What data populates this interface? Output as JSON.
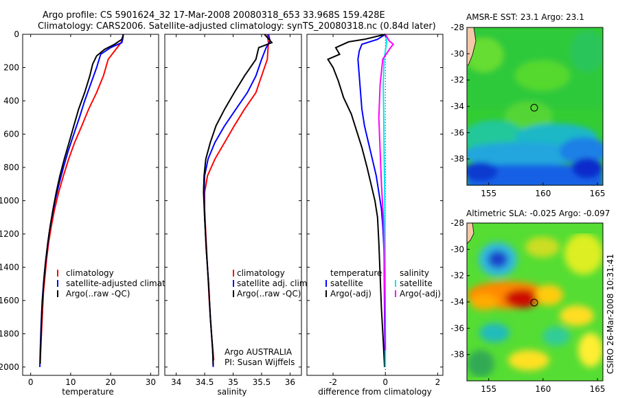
{
  "title_line1": "Argo profile: CS 5901624_32 17-Mar-2008 20080318_653 33.968S 159.428E",
  "title_line2": "Climatology: CARS2006. Satellite-adjusted climatology: synTS_20080318.nc (0.84d later)",
  "credit_vertical": "CSIRO 26-Mar-2008 10:31:41",
  "argo_note": [
    "Argo AUSTRALIA",
    "PI: Susan Wijffels"
  ],
  "colors": {
    "climatology": "#ff0000",
    "satellite": "#0000ff",
    "argo": "#000000",
    "salinity_satellite": "#00e5ee",
    "salinity_argo": "#ff00ff"
  },
  "chart_data": [
    {
      "type": "line",
      "xlabel": "temperature",
      "ylim": [
        2050,
        0
      ],
      "xlim": [
        -2,
        32
      ],
      "xticks": [
        "0",
        "10",
        "20",
        "30"
      ],
      "yticks": [
        "0",
        "200",
        "400",
        "600",
        "800",
        "1000",
        "1200",
        "1400",
        "1600",
        "1800",
        "2000"
      ],
      "legend": [
        "climatology",
        "satellite-adjusted climatology",
        "Argo(..raw -QC)"
      ],
      "series": [
        {
          "name": "climatology",
          "color": "#ff0000",
          "points": [
            [
              23.1,
              0
            ],
            [
              23,
              20
            ],
            [
              22.6,
              50
            ],
            [
              21,
              100
            ],
            [
              19.4,
              150
            ],
            [
              18.2,
              250
            ],
            [
              16.5,
              350
            ],
            [
              14.5,
              450
            ],
            [
              12.8,
              550
            ],
            [
              11,
              650
            ],
            [
              9.5,
              750
            ],
            [
              8.2,
              850
            ],
            [
              7,
              950
            ],
            [
              6,
              1050
            ],
            [
              5.2,
              1150
            ],
            [
              4.5,
              1250
            ],
            [
              4,
              1350
            ],
            [
              3.6,
              1450
            ],
            [
              3.2,
              1550
            ],
            [
              2.9,
              1700
            ],
            [
              2.6,
              1850
            ],
            [
              2.4,
              1960
            ]
          ]
        },
        {
          "name": "satellite-adjusted climatology",
          "color": "#0000ff",
          "points": [
            [
              23.1,
              0
            ],
            [
              23.1,
              20
            ],
            [
              22.8,
              50
            ],
            [
              20,
              80
            ],
            [
              17.5,
              120
            ],
            [
              16.5,
              200
            ],
            [
              15,
              300
            ],
            [
              13.5,
              400
            ],
            [
              12.2,
              500
            ],
            [
              10.8,
              600
            ],
            [
              9.4,
              700
            ],
            [
              8.2,
              800
            ],
            [
              7.1,
              900
            ],
            [
              6.1,
              1000
            ],
            [
              5.3,
              1100
            ],
            [
              4.6,
              1200
            ],
            [
              4.1,
              1300
            ],
            [
              3.6,
              1400
            ],
            [
              3.2,
              1500
            ],
            [
              2.9,
              1600
            ],
            [
              2.6,
              1750
            ],
            [
              2.4,
              1900
            ],
            [
              2.3,
              2000
            ]
          ]
        },
        {
          "name": "Argo(..raw -QC)",
          "color": "#000000",
          "points": [
            [
              23.2,
              0
            ],
            [
              22.8,
              30
            ],
            [
              21,
              60
            ],
            [
              18.5,
              90
            ],
            [
              16.5,
              130
            ],
            [
              15.5,
              180
            ],
            [
              14.8,
              250
            ],
            [
              13.5,
              350
            ],
            [
              12,
              450
            ],
            [
              10.8,
              550
            ],
            [
              9.6,
              650
            ],
            [
              8.4,
              750
            ],
            [
              7.3,
              850
            ],
            [
              6.4,
              950
            ],
            [
              5.6,
              1050
            ],
            [
              4.9,
              1150
            ],
            [
              4.3,
              1250
            ],
            [
              3.8,
              1350
            ],
            [
              3.4,
              1450
            ],
            [
              3.1,
              1550
            ],
            [
              2.8,
              1650
            ],
            [
              2.6,
              1800
            ],
            [
              2.4,
              1950
            ],
            [
              2.4,
              1980
            ]
          ]
        }
      ]
    },
    {
      "type": "line",
      "xlabel": "salinity",
      "ylim": [
        2050,
        0
      ],
      "xlim": [
        33.8,
        36.2
      ],
      "xticks": [
        "34",
        "34.5",
        "35",
        "35.5",
        "36"
      ],
      "legend": [
        "climatology",
        "satellite adj. clim.",
        "Argo(..raw -QC)"
      ],
      "series": [
        {
          "name": "climatology",
          "color": "#ff0000",
          "points": [
            [
              35.6,
              0
            ],
            [
              35.62,
              50
            ],
            [
              35.6,
              150
            ],
            [
              35.5,
              250
            ],
            [
              35.4,
              350
            ],
            [
              35.2,
              450
            ],
            [
              35.02,
              550
            ],
            [
              34.85,
              650
            ],
            [
              34.68,
              750
            ],
            [
              34.55,
              850
            ],
            [
              34.5,
              950
            ],
            [
              34.5,
              1050
            ],
            [
              34.52,
              1200
            ],
            [
              34.55,
              1400
            ],
            [
              34.58,
              1600
            ],
            [
              34.62,
              1800
            ],
            [
              34.66,
              1960
            ]
          ]
        },
        {
          "name": "satellite adj. clim.",
          "color": "#0000ff",
          "points": [
            [
              35.62,
              0
            ],
            [
              35.65,
              40
            ],
            [
              35.58,
              80
            ],
            [
              35.5,
              150
            ],
            [
              35.4,
              250
            ],
            [
              35.25,
              350
            ],
            [
              35.05,
              450
            ],
            [
              34.85,
              550
            ],
            [
              34.68,
              650
            ],
            [
              34.56,
              750
            ],
            [
              34.5,
              850
            ],
            [
              34.49,
              950
            ],
            [
              34.5,
              1100
            ],
            [
              34.53,
              1300
            ],
            [
              34.57,
              1500
            ],
            [
              34.6,
              1700
            ],
            [
              34.64,
              1900
            ],
            [
              34.65,
              2000
            ]
          ]
        },
        {
          "name": "Argo(..raw -QC)",
          "color": "#000000",
          "points": [
            [
              35.55,
              0
            ],
            [
              35.68,
              50
            ],
            [
              35.45,
              80
            ],
            [
              35.4,
              150
            ],
            [
              35.2,
              250
            ],
            [
              35.02,
              350
            ],
            [
              34.85,
              450
            ],
            [
              34.7,
              550
            ],
            [
              34.6,
              650
            ],
            [
              34.52,
              750
            ],
            [
              34.49,
              850
            ],
            [
              34.48,
              950
            ],
            [
              34.5,
              1100
            ],
            [
              34.53,
              1300
            ],
            [
              34.57,
              1500
            ],
            [
              34.6,
              1700
            ],
            [
              34.64,
              1900
            ],
            [
              34.65,
              1990
            ]
          ]
        }
      ]
    },
    {
      "type": "line",
      "xlabel": "difference from climatology",
      "ylim": [
        2050,
        0
      ],
      "xlim": [
        -3,
        2.2
      ],
      "xticks": [
        "-2",
        "0",
        "2"
      ],
      "legend": [
        "temperature",
        "satellite",
        "Argo(-adj)",
        "salinity",
        "satellite",
        "Argo(-adj)"
      ],
      "series": [
        {
          "name": "temperature satellite",
          "color": "#0000ff",
          "points": [
            [
              0,
              0
            ],
            [
              -0.3,
              30
            ],
            [
              -0.9,
              60
            ],
            [
              -1.0,
              100
            ],
            [
              -1.05,
              150
            ],
            [
              -1.0,
              250
            ],
            [
              -0.95,
              350
            ],
            [
              -0.9,
              450
            ],
            [
              -0.8,
              550
            ],
            [
              -0.65,
              650
            ],
            [
              -0.5,
              750
            ],
            [
              -0.35,
              850
            ],
            [
              -0.25,
              950
            ],
            [
              -0.15,
              1050
            ],
            [
              -0.1,
              1150
            ],
            [
              -0.05,
              1300
            ],
            [
              -0.04,
              1500
            ],
            [
              -0.03,
              1700
            ],
            [
              -0.02,
              1900
            ],
            [
              -0.02,
              2000
            ]
          ]
        },
        {
          "name": "temperature Argo(-adj)",
          "color": "#000000",
          "points": [
            [
              0,
              0
            ],
            [
              -0.8,
              30
            ],
            [
              -1.4,
              45
            ],
            [
              -1.9,
              80
            ],
            [
              -1.75,
              120
            ],
            [
              -2.2,
              150
            ],
            [
              -2.0,
              200
            ],
            [
              -1.8,
              280
            ],
            [
              -1.6,
              380
            ],
            [
              -1.3,
              480
            ],
            [
              -1.1,
              580
            ],
            [
              -0.9,
              680
            ],
            [
              -0.7,
              800
            ],
            [
              -0.55,
              900
            ],
            [
              -0.4,
              1000
            ],
            [
              -0.3,
              1100
            ],
            [
              -0.25,
              1250
            ],
            [
              -0.2,
              1450
            ],
            [
              -0.15,
              1650
            ],
            [
              -0.08,
              1850
            ],
            [
              -0.03,
              2000
            ]
          ]
        },
        {
          "name": "salinity satellite",
          "color": "#00e5ee",
          "points": [
            [
              0,
              0
            ],
            [
              0.05,
              40
            ],
            [
              0.02,
              80
            ],
            [
              -0.05,
              150
            ],
            [
              -0.08,
              300
            ],
            [
              -0.06,
              500
            ],
            [
              -0.05,
              700
            ],
            [
              -0.03,
              900
            ],
            [
              -0.02,
              1100
            ],
            [
              -0.01,
              1400
            ],
            [
              0,
              1700
            ],
            [
              0,
              2000
            ]
          ]
        },
        {
          "name": "salinity Argo(-adj)",
          "color": "#ff00ff",
          "points": [
            [
              0,
              0
            ],
            [
              0.15,
              40
            ],
            [
              0.3,
              60
            ],
            [
              0.2,
              80
            ],
            [
              -0.1,
              150
            ],
            [
              -0.2,
              300
            ],
            [
              -0.25,
              500
            ],
            [
              -0.2,
              700
            ],
            [
              -0.15,
              900
            ],
            [
              -0.08,
              1100
            ],
            [
              -0.05,
              1300
            ],
            [
              -0.03,
              1500
            ],
            [
              -0.01,
              1700
            ],
            [
              0,
              1900
            ]
          ]
        }
      ]
    },
    {
      "type": "heatmap",
      "title": "AMSR-E SST: 23.1  Argo: 23.1",
      "xlim": [
        153,
        165.5
      ],
      "ylim": [
        -40,
        -28
      ],
      "xticks": [
        "155",
        "160",
        "165"
      ],
      "yticks": [
        "-28",
        "-30",
        "-32",
        "-34",
        "-36",
        "-38"
      ],
      "float_position": [
        159.428,
        -33.968
      ]
    },
    {
      "type": "heatmap",
      "title": "Altimetric SLA: -0.025  Argo: -0.097",
      "xlim": [
        153,
        165.5
      ],
      "ylim": [
        -40,
        -28
      ],
      "xticks": [
        "155",
        "160",
        "165"
      ],
      "yticks": [
        "-28",
        "-30",
        "-32",
        "-34",
        "-36",
        "-38"
      ],
      "float_position": [
        159.428,
        -33.968
      ]
    }
  ]
}
